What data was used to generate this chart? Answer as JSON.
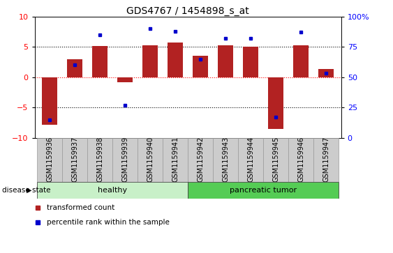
{
  "title": "GDS4767 / 1454898_s_at",
  "samples": [
    "GSM1159936",
    "GSM1159937",
    "GSM1159938",
    "GSM1159939",
    "GSM1159940",
    "GSM1159941",
    "GSM1159942",
    "GSM1159943",
    "GSM1159944",
    "GSM1159945",
    "GSM1159946",
    "GSM1159947"
  ],
  "transformed_count": [
    -7.8,
    3.0,
    5.1,
    -0.8,
    5.3,
    5.7,
    3.5,
    5.2,
    5.0,
    -8.5,
    5.2,
    1.3
  ],
  "percentile_rank": [
    15,
    60,
    85,
    27,
    90,
    88,
    65,
    82,
    82,
    17,
    87,
    53
  ],
  "ylim_left": [
    -10,
    10
  ],
  "ylim_right": [
    0,
    100
  ],
  "bar_color": "#B22222",
  "dot_color": "#0000CC",
  "healthy_count": 6,
  "tumor_count": 6,
  "healthy_label": "healthy",
  "tumor_label": "pancreatic tumor",
  "disease_state_label": "disease state",
  "legend_bar_label": "transformed count",
  "legend_dot_label": "percentile rank within the sample",
  "healthy_color": "#c8f0c8",
  "tumor_color": "#55cc55",
  "title_fontsize": 10,
  "tick_label_fontsize": 7,
  "bar_width": 0.6
}
